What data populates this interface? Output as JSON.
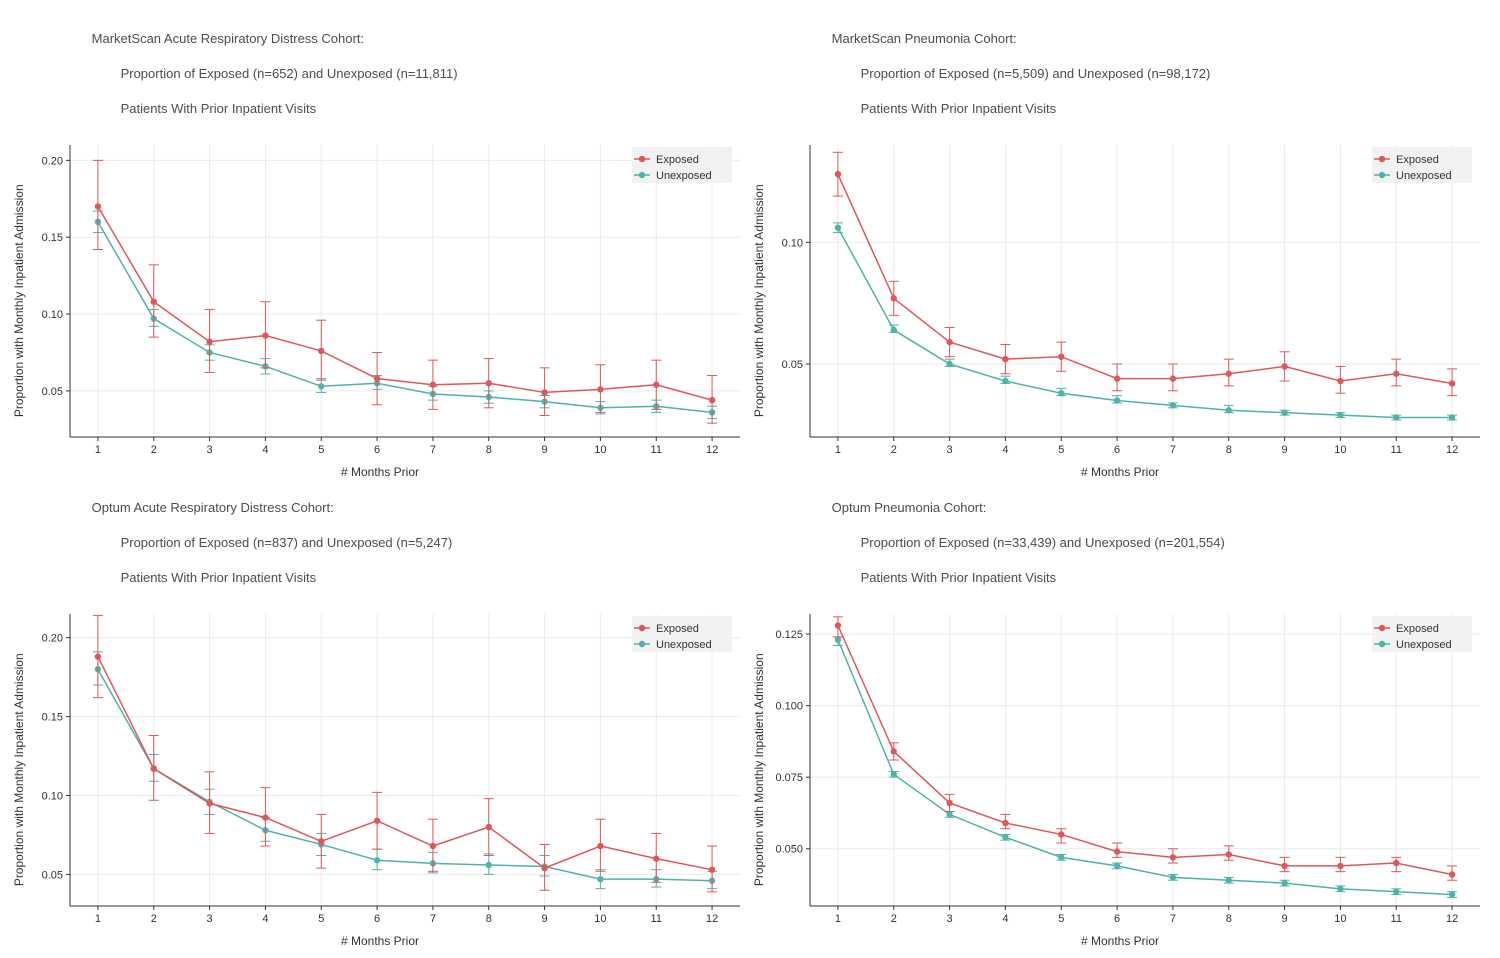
{
  "colors": {
    "exposed": "#e15759",
    "unexposed": "#4fb3ab",
    "grid": "#ebebeb",
    "axis": "#333333",
    "legend_bg": "#f2f2f2",
    "panel_bg": "#ffffff",
    "text": "#4d4d4d"
  },
  "shared": {
    "xlabel": "# Months Prior",
    "ylabel": "Proportion with Monthly Inpatient Admission",
    "legend": {
      "exposed": "Exposed",
      "unexposed": "Unexposed"
    },
    "x_ticks": [
      1,
      2,
      3,
      4,
      5,
      6,
      7,
      8,
      9,
      10,
      11,
      12
    ],
    "marker_radius": 3.2,
    "line_width": 1.5,
    "err_cap": 5,
    "title_fontsize": 13,
    "label_fontsize": 12,
    "tick_fontsize": 11
  },
  "panels": [
    {
      "id": "ms-ards",
      "title_l1": "MarketScan Acute Respiratory Distress Cohort:",
      "title_l2": "        Proportion of Exposed (n=652) and Unexposed (n=11,811)",
      "title_l3": "        Patients With Prior Inpatient Visits",
      "ylim": [
        0.02,
        0.21
      ],
      "yticks": [
        0.05,
        0.1,
        0.15,
        0.2
      ],
      "ytick_labels": [
        "0.05",
        "0.10",
        "0.15",
        "0.20"
      ],
      "series": {
        "exposed": {
          "y": [
            0.17,
            0.108,
            0.082,
            0.086,
            0.076,
            0.058,
            0.054,
            0.055,
            0.049,
            0.051,
            0.054,
            0.044
          ],
          "lo": [
            0.142,
            0.085,
            0.062,
            0.065,
            0.057,
            0.041,
            0.038,
            0.039,
            0.034,
            0.036,
            0.038,
            0.029
          ],
          "hi": [
            0.2,
            0.132,
            0.103,
            0.108,
            0.096,
            0.075,
            0.07,
            0.071,
            0.065,
            0.067,
            0.07,
            0.06
          ]
        },
        "unexposed": {
          "y": [
            0.16,
            0.097,
            0.075,
            0.066,
            0.053,
            0.055,
            0.048,
            0.046,
            0.043,
            0.039,
            0.04,
            0.036
          ],
          "lo": [
            0.153,
            0.092,
            0.07,
            0.061,
            0.049,
            0.051,
            0.044,
            0.042,
            0.039,
            0.035,
            0.036,
            0.032
          ],
          "hi": [
            0.167,
            0.103,
            0.08,
            0.071,
            0.058,
            0.06,
            0.053,
            0.05,
            0.047,
            0.043,
            0.044,
            0.04
          ]
        }
      }
    },
    {
      "id": "ms-pneu",
      "title_l1": "MarketScan Pneumonia Cohort:",
      "title_l2": "        Proportion of Exposed (n=5,509) and Unexposed (n=98,172)",
      "title_l3": "        Patients With Prior Inpatient Visits",
      "ylim": [
        0.02,
        0.14
      ],
      "yticks": [
        0.05,
        0.1
      ],
      "ytick_labels": [
        "0.05",
        "0.10"
      ],
      "series": {
        "exposed": {
          "y": [
            0.128,
            0.077,
            0.059,
            0.052,
            0.053,
            0.044,
            0.044,
            0.046,
            0.049,
            0.043,
            0.046,
            0.042
          ],
          "lo": [
            0.119,
            0.07,
            0.053,
            0.046,
            0.047,
            0.039,
            0.039,
            0.041,
            0.043,
            0.038,
            0.041,
            0.037
          ],
          "hi": [
            0.137,
            0.084,
            0.065,
            0.058,
            0.059,
            0.05,
            0.05,
            0.052,
            0.055,
            0.049,
            0.052,
            0.048
          ]
        },
        "unexposed": {
          "y": [
            0.106,
            0.064,
            0.05,
            0.043,
            0.038,
            0.035,
            0.033,
            0.031,
            0.03,
            0.029,
            0.028,
            0.028
          ],
          "lo": [
            0.104,
            0.063,
            0.049,
            0.042,
            0.037,
            0.034,
            0.032,
            0.03,
            0.029,
            0.028,
            0.027,
            0.027
          ],
          "hi": [
            0.108,
            0.066,
            0.052,
            0.045,
            0.04,
            0.037,
            0.034,
            0.033,
            0.031,
            0.03,
            0.029,
            0.029
          ]
        }
      }
    },
    {
      "id": "op-ards",
      "title_l1": "Optum Acute Respiratory Distress Cohort:",
      "title_l2": "        Proportion of Exposed (n=837) and Unexposed (n=5,247)",
      "title_l3": "        Patients With Prior Inpatient Visits",
      "ylim": [
        0.03,
        0.215
      ],
      "yticks": [
        0.05,
        0.1,
        0.15,
        0.2
      ],
      "ytick_labels": [
        "0.05",
        "0.10",
        "0.15",
        "0.20"
      ],
      "series": {
        "exposed": {
          "y": [
            0.188,
            0.117,
            0.095,
            0.086,
            0.071,
            0.084,
            0.068,
            0.08,
            0.054,
            0.068,
            0.06,
            0.053
          ],
          "lo": [
            0.162,
            0.097,
            0.076,
            0.068,
            0.054,
            0.066,
            0.052,
            0.062,
            0.04,
            0.052,
            0.045,
            0.039
          ],
          "hi": [
            0.214,
            0.138,
            0.115,
            0.105,
            0.088,
            0.102,
            0.085,
            0.098,
            0.069,
            0.085,
            0.076,
            0.068
          ]
        },
        "unexposed": {
          "y": [
            0.18,
            0.117,
            0.096,
            0.078,
            0.069,
            0.059,
            0.057,
            0.056,
            0.055,
            0.047,
            0.047,
            0.046
          ],
          "lo": [
            0.17,
            0.109,
            0.088,
            0.071,
            0.062,
            0.053,
            0.051,
            0.05,
            0.049,
            0.041,
            0.042,
            0.041
          ],
          "hi": [
            0.191,
            0.126,
            0.104,
            0.086,
            0.076,
            0.066,
            0.064,
            0.063,
            0.062,
            0.053,
            0.053,
            0.052
          ]
        }
      }
    },
    {
      "id": "op-pneu",
      "title_l1": "Optum Pneumonia Cohort:",
      "title_l2": "        Proportion of Exposed (n=33,439) and Unexposed (n=201,554)",
      "title_l3": "        Patients With Prior Inpatient Visits",
      "ylim": [
        0.03,
        0.132
      ],
      "yticks": [
        0.05,
        0.075,
        0.1,
        0.125
      ],
      "ytick_labels": [
        "0.050",
        "0.075",
        "0.100",
        "0.125"
      ],
      "series": {
        "exposed": {
          "y": [
            0.128,
            0.084,
            0.066,
            0.059,
            0.055,
            0.049,
            0.047,
            0.048,
            0.044,
            0.044,
            0.045,
            0.041
          ],
          "lo": [
            0.124,
            0.081,
            0.063,
            0.057,
            0.052,
            0.047,
            0.045,
            0.046,
            0.042,
            0.042,
            0.042,
            0.039
          ],
          "hi": [
            0.131,
            0.087,
            0.069,
            0.062,
            0.057,
            0.052,
            0.05,
            0.051,
            0.047,
            0.047,
            0.047,
            0.044
          ]
        },
        "unexposed": {
          "y": [
            0.123,
            0.076,
            0.062,
            0.054,
            0.047,
            0.044,
            0.04,
            0.039,
            0.038,
            0.036,
            0.035,
            0.034
          ],
          "lo": [
            0.121,
            0.075,
            0.061,
            0.053,
            0.046,
            0.043,
            0.039,
            0.038,
            0.037,
            0.035,
            0.034,
            0.033
          ],
          "hi": [
            0.124,
            0.077,
            0.063,
            0.055,
            0.048,
            0.045,
            0.041,
            0.04,
            0.039,
            0.037,
            0.036,
            0.035
          ]
        }
      }
    }
  ]
}
